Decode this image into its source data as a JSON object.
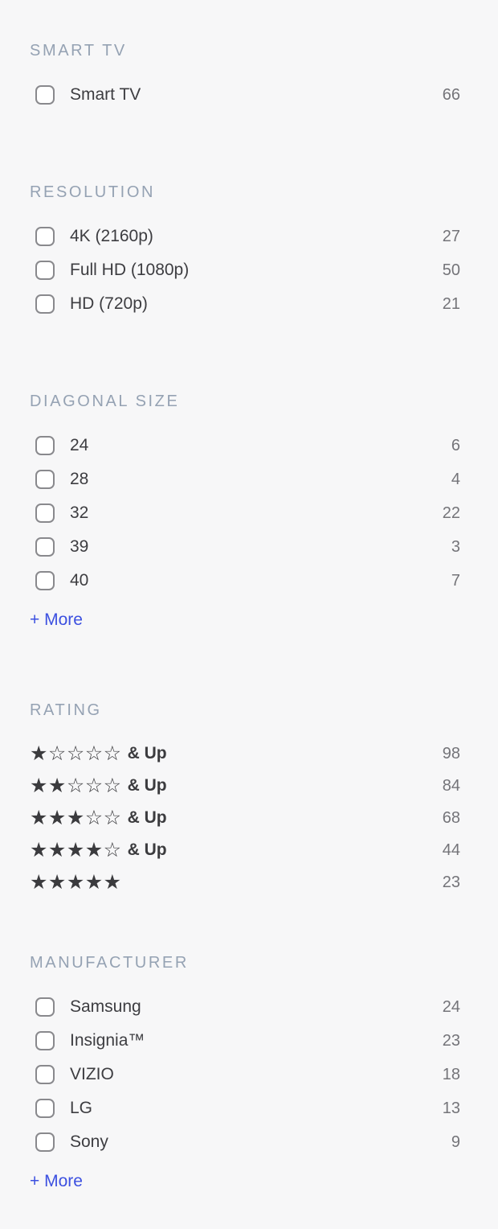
{
  "colors": {
    "background": "#f7f7f8",
    "section_title": "#95a2b3",
    "option_label": "#3d3d41",
    "option_count": "#747479",
    "more_link": "#3c50e0",
    "checkbox_border": "#89898d",
    "star": "#3b3b3e"
  },
  "icons": {
    "star_filled": "★",
    "star_empty": "☆"
  },
  "sections": [
    {
      "title": "SMART TV",
      "type": "checkbox",
      "items": [
        {
          "label": "Smart TV",
          "count": "66"
        }
      ]
    },
    {
      "title": "RESOLUTION",
      "type": "checkbox",
      "items": [
        {
          "label": "4K (2160p)",
          "count": "27"
        },
        {
          "label": "Full HD (1080p)",
          "count": "50"
        },
        {
          "label": "HD (720p)",
          "count": "21"
        }
      ]
    },
    {
      "title": "DIAGONAL SIZE",
      "type": "checkbox",
      "more_label": "+ More",
      "items": [
        {
          "label": "24",
          "count": "6"
        },
        {
          "label": "28",
          "count": "4"
        },
        {
          "label": "32",
          "count": "22"
        },
        {
          "label": "39",
          "count": "3"
        },
        {
          "label": "40",
          "count": "7"
        }
      ]
    },
    {
      "title": "RATING",
      "type": "rating",
      "items": [
        {
          "stars_filled": 1,
          "stars_total": 5,
          "suffix": "& Up",
          "count": "98"
        },
        {
          "stars_filled": 2,
          "stars_total": 5,
          "suffix": "& Up",
          "count": "84"
        },
        {
          "stars_filled": 3,
          "stars_total": 5,
          "suffix": "& Up",
          "count": "68"
        },
        {
          "stars_filled": 4,
          "stars_total": 5,
          "suffix": "& Up",
          "count": "44"
        },
        {
          "stars_filled": 5,
          "stars_total": 5,
          "suffix": "",
          "count": "23"
        }
      ]
    },
    {
      "title": "MANUFACTURER",
      "type": "checkbox",
      "more_label": "+ More",
      "items": [
        {
          "label": "Samsung",
          "count": "24"
        },
        {
          "label": "Insignia™",
          "count": "23"
        },
        {
          "label": "VIZIO",
          "count": "18"
        },
        {
          "label": "LG",
          "count": "13"
        },
        {
          "label": "Sony",
          "count": "9"
        }
      ]
    }
  ]
}
